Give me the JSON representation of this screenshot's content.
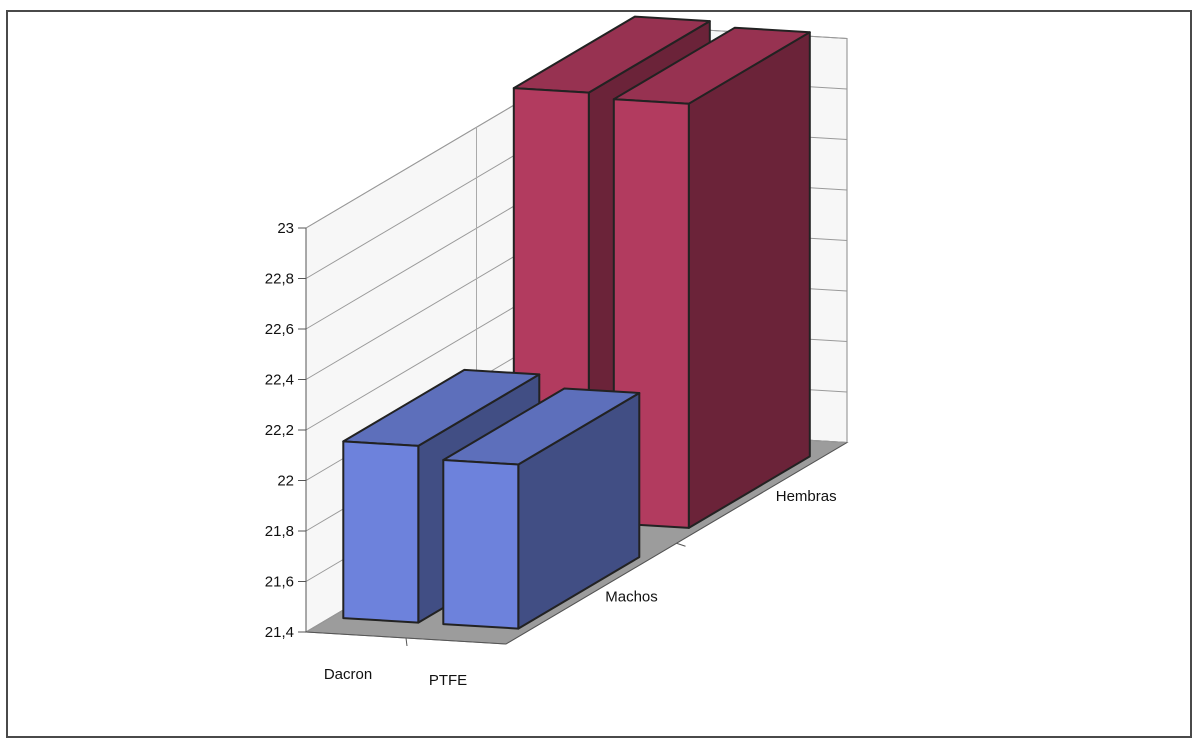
{
  "chart_data": {
    "type": "bar",
    "subtype": "3d-column",
    "categories": [
      "Dacron",
      "PTFE"
    ],
    "series": [
      {
        "name": "Machos",
        "values": [
          22.1,
          22.05
        ],
        "color": "#6d82dc"
      },
      {
        "name": "Hembras",
        "values": [
          23.1,
          23.08
        ],
        "color": "#b23b5f"
      }
    ],
    "yticks": [
      "21,4",
      "21,6",
      "21,8",
      "22",
      "22,2",
      "22,4",
      "22,6",
      "22,8",
      "23"
    ],
    "ylim": [
      21.4,
      23
    ],
    "grid": true,
    "floor_color": "#9c9c9c"
  }
}
